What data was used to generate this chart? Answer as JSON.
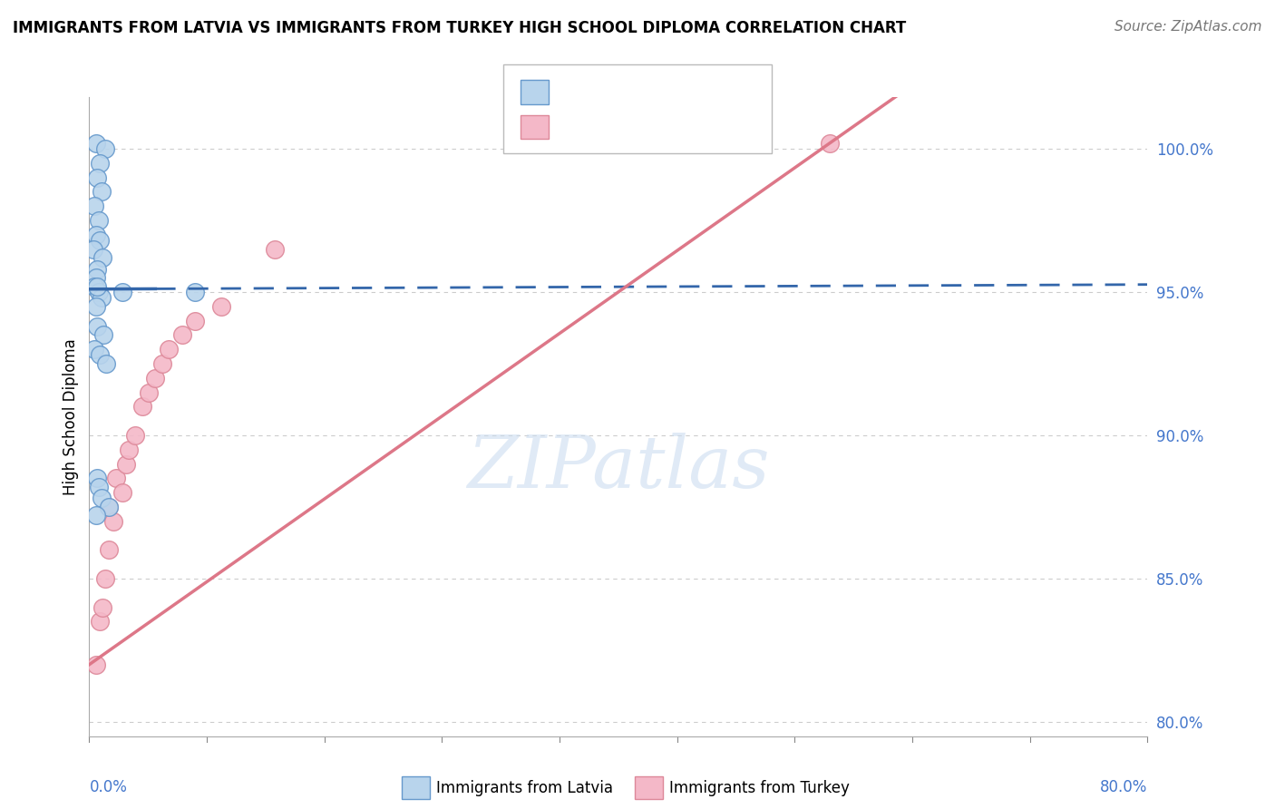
{
  "title": "IMMIGRANTS FROM LATVIA VS IMMIGRANTS FROM TURKEY HIGH SCHOOL DIPLOMA CORRELATION CHART",
  "source": "Source: ZipAtlas.com",
  "ylabel": "High School Diploma",
  "ylabel_ticks": [
    80.0,
    85.0,
    90.0,
    95.0,
    100.0
  ],
  "xmin": 0.0,
  "xmax": 80.0,
  "ymin": 79.5,
  "ymax": 101.8,
  "latvia_color": "#b8d4ec",
  "turkey_color": "#f4b8c8",
  "latvia_edge": "#6699cc",
  "turkey_edge": "#dd8899",
  "regression_latvia_color": "#3366aa",
  "regression_turkey_color": "#dd7788",
  "latvia_points_x": [
    0.5,
    1.2,
    0.8,
    0.6,
    0.9,
    0.4,
    0.7,
    0.5,
    0.8,
    0.3,
    1.0,
    0.6,
    0.5,
    0.4,
    0.7,
    0.9,
    0.5,
    0.6,
    1.1,
    0.4,
    0.8,
    1.3,
    0.6,
    0.7,
    0.9,
    1.5,
    0.5,
    2.5,
    0.6,
    8.0
  ],
  "latvia_points_y": [
    100.2,
    100.0,
    99.5,
    99.0,
    98.5,
    98.0,
    97.5,
    97.0,
    96.8,
    96.5,
    96.2,
    95.8,
    95.5,
    95.2,
    95.0,
    94.8,
    94.5,
    93.8,
    93.5,
    93.0,
    92.8,
    92.5,
    88.5,
    88.2,
    87.8,
    87.5,
    87.2,
    95.0,
    95.2,
    95.0
  ],
  "turkey_points_x": [
    0.5,
    0.8,
    1.0,
    1.2,
    1.5,
    1.5,
    1.8,
    2.0,
    2.5,
    2.8,
    3.0,
    3.5,
    4.0,
    4.5,
    5.0,
    5.5,
    6.0,
    7.0,
    8.0,
    10.0,
    14.0,
    56.0
  ],
  "turkey_points_y": [
    82.0,
    83.5,
    84.0,
    85.0,
    86.0,
    87.5,
    87.0,
    88.5,
    88.0,
    89.0,
    89.5,
    90.0,
    91.0,
    91.5,
    92.0,
    92.5,
    93.0,
    93.5,
    94.0,
    94.5,
    96.5,
    100.2
  ],
  "lv_reg_slope": 0.002,
  "lv_reg_intercept": 95.1,
  "tk_reg_slope": 0.325,
  "tk_reg_intercept": 82.0,
  "watermark_text": "ZIPatlas"
}
